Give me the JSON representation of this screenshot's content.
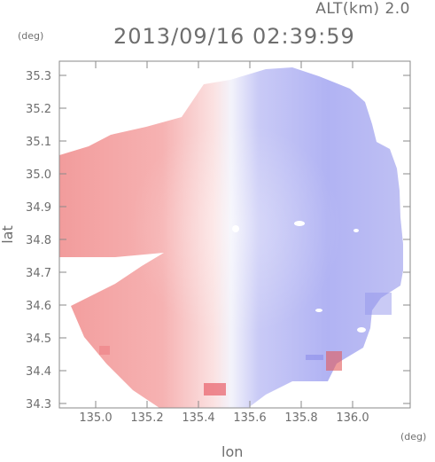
{
  "header": {
    "altitude": "ALT(km) 2.0",
    "timestamp": "2013/09/16 02:39:59"
  },
  "axes": {
    "x_unit": "(deg)",
    "y_unit": "(deg)",
    "xlabel": "lon",
    "ylabel": "lat",
    "x_ticks": [
      "135.0",
      "135.2",
      "135.4",
      "135.6",
      "135.8",
      "136.0"
    ],
    "y_ticks": [
      "35.3",
      "35.2",
      "35.1",
      "35.0",
      "34.9",
      "34.8",
      "34.7",
      "34.6",
      "34.5",
      "34.4",
      "34.3"
    ]
  },
  "colors": {
    "approaching": "#f5a4a4",
    "receding": "#a9abf2",
    "axis": "#8a8a8a"
  }
}
